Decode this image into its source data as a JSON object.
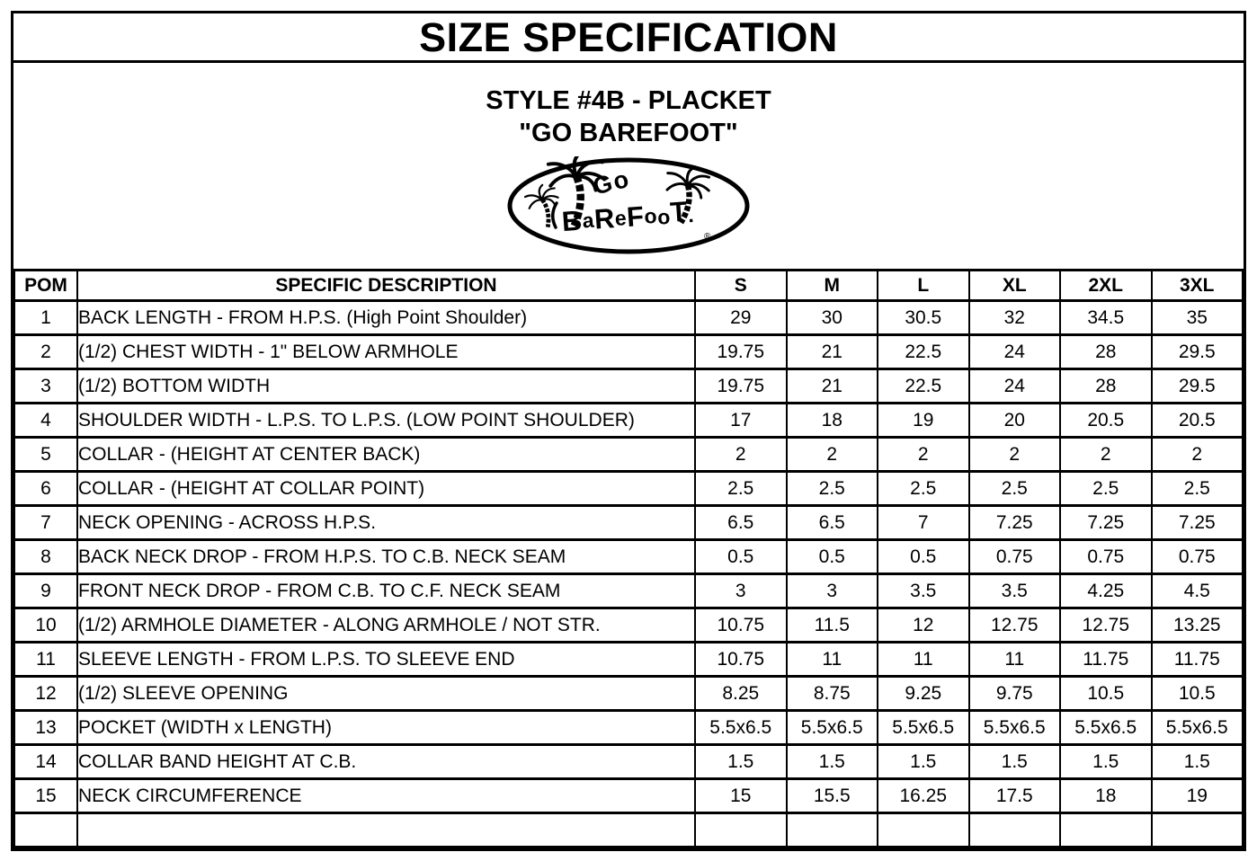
{
  "page": {
    "title": "SIZE SPECIFICATION",
    "subtitle_line1": "STYLE #4B - PLACKET",
    "subtitle_line2": "\"GO BAREFOOT\"",
    "logo": {
      "name": "go-barefoot-logo",
      "text_top": "Go",
      "text_main": "BaReFooT.",
      "registered_mark": "®"
    }
  },
  "table": {
    "headers": [
      "POM",
      "SPECIFIC DESCRIPTION",
      "S",
      "M",
      "L",
      "XL",
      "2XL",
      "3XL"
    ],
    "rows": [
      {
        "pom": "1",
        "description": "BACK LENGTH - FROM H.P.S. (High Point Shoulder)",
        "values": [
          "29",
          "30",
          "30.5",
          "32",
          "34.5",
          "35"
        ]
      },
      {
        "pom": "2",
        "description": "(1/2) CHEST WIDTH - 1\" BELOW ARMHOLE",
        "values": [
          "19.75",
          "21",
          "22.5",
          "24",
          "28",
          "29.5"
        ]
      },
      {
        "pom": "3",
        "description": "(1/2) BOTTOM WIDTH",
        "values": [
          "19.75",
          "21",
          "22.5",
          "24",
          "28",
          "29.5"
        ]
      },
      {
        "pom": "4",
        "description": "SHOULDER WIDTH - L.P.S. TO L.P.S. (LOW POINT SHOULDER)",
        "values": [
          "17",
          "18",
          "19",
          "20",
          "20.5",
          "20.5"
        ]
      },
      {
        "pom": "5",
        "description": "COLLAR - (HEIGHT AT CENTER BACK)",
        "values": [
          "2",
          "2",
          "2",
          "2",
          "2",
          "2"
        ]
      },
      {
        "pom": "6",
        "description": "COLLAR - (HEIGHT AT COLLAR POINT)",
        "values": [
          "2.5",
          "2.5",
          "2.5",
          "2.5",
          "2.5",
          "2.5"
        ]
      },
      {
        "pom": "7",
        "description": "NECK OPENING - ACROSS H.P.S.",
        "values": [
          "6.5",
          "6.5",
          "7",
          "7.25",
          "7.25",
          "7.25"
        ]
      },
      {
        "pom": "8",
        "description": "BACK NECK DROP - FROM H.P.S. TO C.B. NECK SEAM",
        "values": [
          "0.5",
          "0.5",
          "0.5",
          "0.75",
          "0.75",
          "0.75"
        ]
      },
      {
        "pom": "9",
        "description": "FRONT NECK DROP - FROM C.B. TO C.F. NECK SEAM",
        "values": [
          "3",
          "3",
          "3.5",
          "3.5",
          "4.25",
          "4.5"
        ]
      },
      {
        "pom": "10",
        "description": "(1/2) ARMHOLE DIAMETER - ALONG ARMHOLE / NOT STR.",
        "values": [
          "10.75",
          "11.5",
          "12",
          "12.75",
          "12.75",
          "13.25"
        ]
      },
      {
        "pom": "11",
        "description": "SLEEVE LENGTH - FROM L.P.S. TO SLEEVE END",
        "values": [
          "10.75",
          "11",
          "11",
          "11",
          "11.75",
          "11.75"
        ]
      },
      {
        "pom": "12",
        "description": "(1/2) SLEEVE OPENING",
        "values": [
          "8.25",
          "8.75",
          "9.25",
          "9.75",
          "10.5",
          "10.5"
        ]
      },
      {
        "pom": "13",
        "description": "POCKET (WIDTH x LENGTH)",
        "values": [
          "5.5x6.5",
          "5.5x6.5",
          "5.5x6.5",
          "5.5x6.5",
          "5.5x6.5",
          "5.5x6.5"
        ]
      },
      {
        "pom": "14",
        "description": "COLLAR BAND HEIGHT AT C.B.",
        "values": [
          "1.5",
          "1.5",
          "1.5",
          "1.5",
          "1.5",
          "1.5"
        ]
      },
      {
        "pom": "15",
        "description": "NECK CIRCUMFERENCE",
        "values": [
          "15",
          "15.5",
          "16.25",
          "17.5",
          "18",
          "19"
        ]
      },
      {
        "pom": "",
        "description": "",
        "values": [
          "",
          "",
          "",
          "",
          "",
          ""
        ]
      }
    ]
  }
}
